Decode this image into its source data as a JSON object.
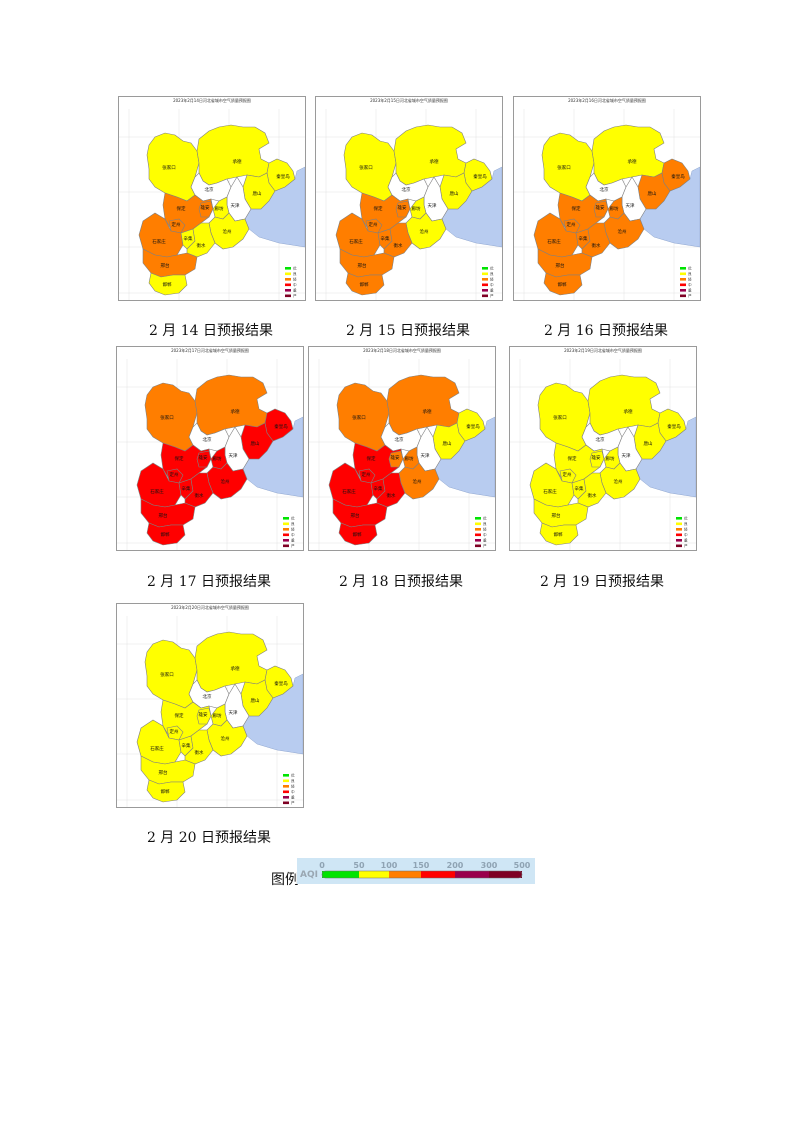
{
  "region_labels": {
    "zhangjiakou": "张家口",
    "chengde": "承德",
    "beijing": "北京",
    "tianjin": "天津",
    "qinhuangdao": "秦皇岛",
    "tangshan": "唐山",
    "langfang": "廊坊",
    "baoding": "保定",
    "dingzhou": "定州",
    "xiongan": "雄安",
    "cangzhou": "沧州",
    "shijiazhuang": "石家庄",
    "xinji": "辛集",
    "hengshui": "衡水",
    "xingtai": "邢台",
    "handan": "邯郸"
  },
  "levels": {
    "good": "#ffff00",
    "light": "#ff7e00",
    "moderate": "#ff0000",
    "none": "#ffffff"
  },
  "key_colors": [
    "#00e400",
    "#ffff00",
    "#ff7e00",
    "#ff0000",
    "#99004c",
    "#7e0023"
  ],
  "key_labels": [
    "优",
    "良",
    "轻",
    "中",
    "重",
    "严"
  ],
  "maps": [
    {
      "title": "2023年2月14日河北省城市空气质量预报图",
      "caption": "2 月 14 日预报结果",
      "fill": {
        "zhangjiakou": "good",
        "chengde": "good",
        "qinhuangdao": "good",
        "tangshan": "good",
        "langfang": "good",
        "baoding": "light",
        "dingzhou": "light",
        "xiongan": "light",
        "cangzhou": "good",
        "shijiazhuang": "light",
        "xinji": "good",
        "hengshui": "good",
        "xingtai": "light",
        "handan": "good"
      }
    },
    {
      "title": "2023年2月15日河北省城市空气质量预报图",
      "caption": "2 月 15 日预报结果",
      "fill": {
        "zhangjiakou": "good",
        "chengde": "good",
        "qinhuangdao": "good",
        "tangshan": "good",
        "langfang": "good",
        "baoding": "light",
        "dingzhou": "light",
        "xiongan": "light",
        "cangzhou": "good",
        "shijiazhuang": "light",
        "xinji": "light",
        "hengshui": "light",
        "xingtai": "light",
        "handan": "light"
      }
    },
    {
      "title": "2023年2月16日河北省城市空气质量预报图",
      "caption": "2 月 16 日预报结果",
      "fill": {
        "zhangjiakou": "good",
        "chengde": "good",
        "qinhuangdao": "light",
        "tangshan": "light",
        "langfang": "light",
        "baoding": "light",
        "dingzhou": "light",
        "xiongan": "light",
        "cangzhou": "light",
        "shijiazhuang": "light",
        "xinji": "light",
        "hengshui": "light",
        "xingtai": "light",
        "handan": "light"
      }
    },
    {
      "title": "2023年2月17日河北省城市空气质量预报图",
      "caption": "2 月 17 日预报结果",
      "fill": {
        "zhangjiakou": "light",
        "chengde": "light",
        "qinhuangdao": "moderate",
        "tangshan": "moderate",
        "langfang": "moderate",
        "baoding": "moderate",
        "dingzhou": "moderate",
        "xiongan": "moderate",
        "cangzhou": "moderate",
        "shijiazhuang": "moderate",
        "xinji": "moderate",
        "hengshui": "moderate",
        "xingtai": "moderate",
        "handan": "moderate"
      }
    },
    {
      "title": "2023年2月18日河北省城市空气质量预报图",
      "caption": "2 月 18 日预报结果",
      "fill": {
        "zhangjiakou": "light",
        "chengde": "light",
        "qinhuangdao": "good",
        "tangshan": "good",
        "langfang": "light",
        "baoding": "moderate",
        "dingzhou": "moderate",
        "xiongan": "light",
        "cangzhou": "light",
        "shijiazhuang": "moderate",
        "xinji": "moderate",
        "hengshui": "moderate",
        "xingtai": "moderate",
        "handan": "moderate"
      }
    },
    {
      "title": "2023年2月19日河北省城市空气质量预报图",
      "caption": "2 月 19 日预报结果",
      "fill": {
        "zhangjiakou": "good",
        "chengde": "good",
        "qinhuangdao": "good",
        "tangshan": "good",
        "langfang": "good",
        "baoding": "good",
        "dingzhou": "good",
        "xiongan": "good",
        "cangzhou": "good",
        "shijiazhuang": "good",
        "xinji": "good",
        "hengshui": "good",
        "xingtai": "good",
        "handan": "good"
      }
    },
    {
      "title": "2023年2月20日河北省城市空气质量预报图",
      "caption": "2 月 20 日预报结果",
      "fill": {
        "zhangjiakou": "good",
        "chengde": "good",
        "qinhuangdao": "good",
        "tangshan": "good",
        "langfang": "good",
        "baoding": "good",
        "dingzhou": "good",
        "xiongan": "good",
        "cangzhou": "good",
        "shijiazhuang": "good",
        "xinji": "good",
        "hengshui": "good",
        "xingtai": "good",
        "handan": "good"
      }
    }
  ],
  "legend": {
    "label": "图例",
    "prefix": "AQI",
    "ticks": [
      "0",
      "50",
      "100",
      "150",
      "200",
      "300",
      "500"
    ],
    "colors": [
      "#00e400",
      "#ffff00",
      "#ff7e00",
      "#ff0000",
      "#99004c",
      "#7e0023"
    ]
  }
}
